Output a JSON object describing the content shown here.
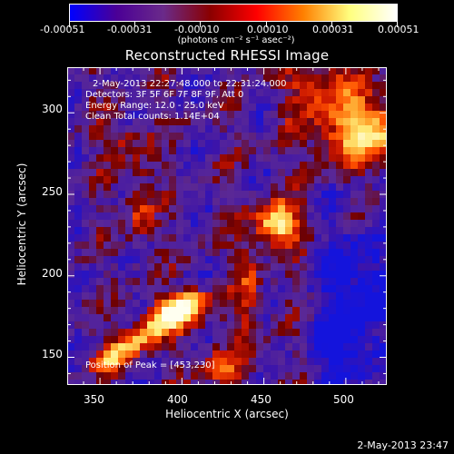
{
  "colorbar": {
    "tick_labels": [
      "-0.00051",
      "-0.00031",
      "-0.00010",
      "0.00010",
      "0.00031",
      "0.00051"
    ],
    "units_label": "(photons cm⁻² s⁻¹ asec⁻²)",
    "colormap": [
      "#0000ff",
      "#4b0096",
      "#6a2a8a",
      "#8a0000",
      "#ff0000",
      "#ff8000",
      "#ffff80",
      "#ffffff"
    ]
  },
  "plot": {
    "title": "Reconstructed RHESSI Image",
    "annotations": {
      "time_range": "2-May-2013 22:27:48.000 to 22:31:24.000",
      "detectors": "Detectors: 3F 5F 6F 7F 8F 9F, Att 0",
      "energy_range": "Energy Range: 12.0 - 25.0 keV",
      "clean_counts": "Clean     Total counts: 1.14E+04",
      "peak_position": "Position of Peak = [453,230]"
    }
  },
  "axes": {
    "xlabel": "Heliocentric X (arcsec)",
    "ylabel": "Heliocentric Y (arcsec)",
    "xticks": [
      "350",
      "400",
      "450",
      "500"
    ],
    "yticks": [
      "150",
      "200",
      "250",
      "300"
    ],
    "xlim": [
      330,
      525
    ],
    "ylim": [
      133,
      328
    ]
  },
  "footer": {
    "timestamp": "2-May-2013 23:47"
  }
}
